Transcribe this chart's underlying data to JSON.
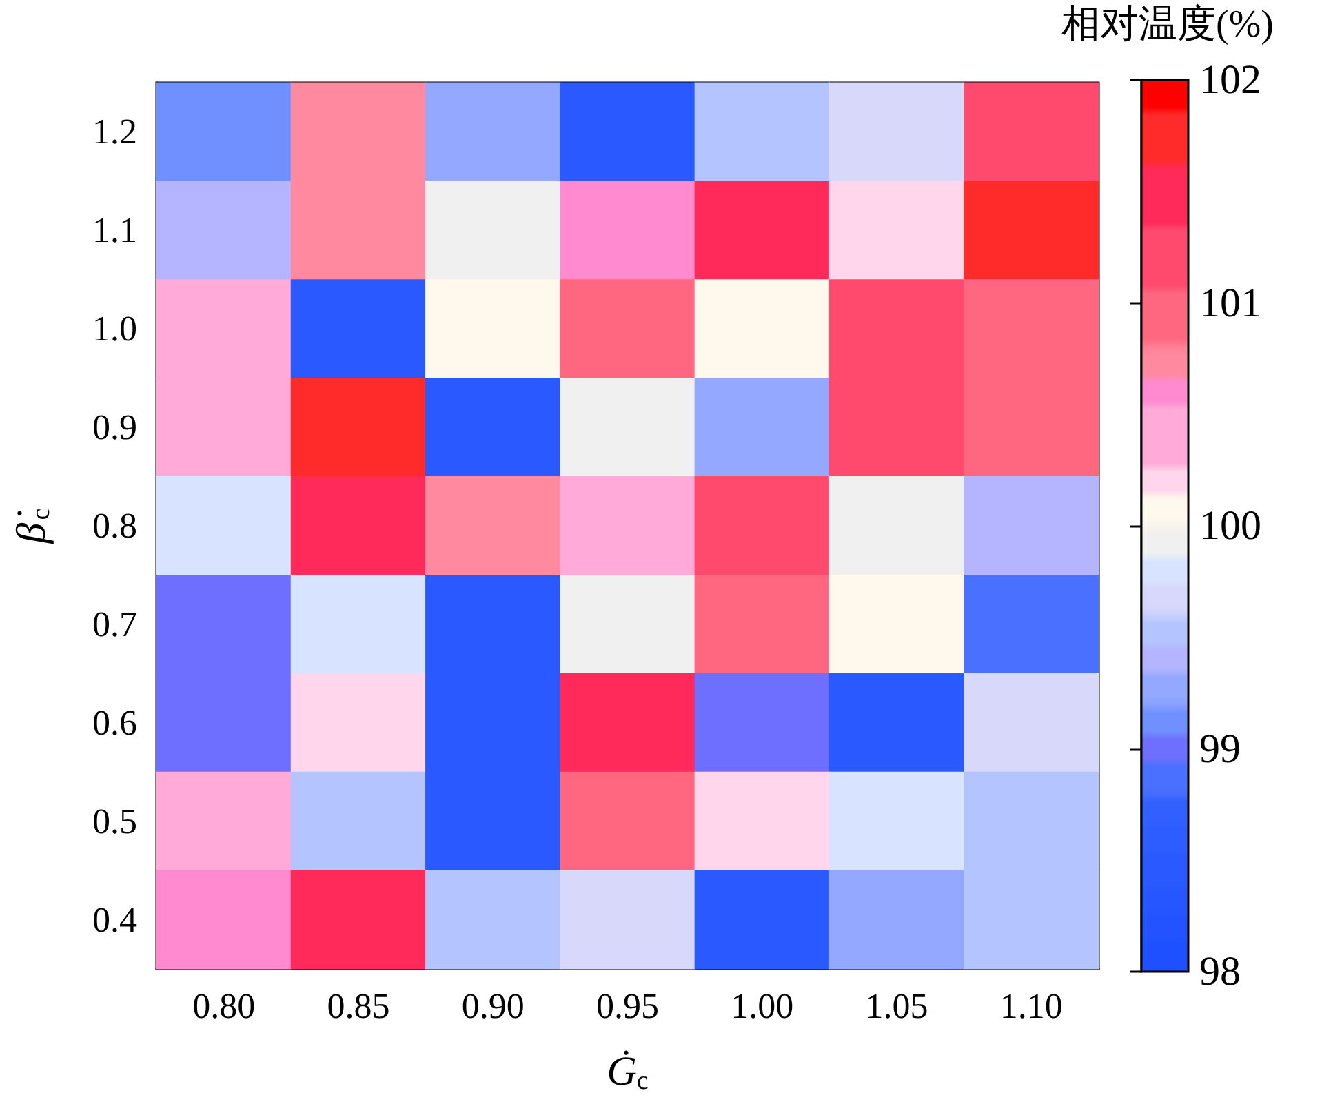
{
  "chart_data": {
    "type": "heatmap",
    "xlabel": "Ġ$_{c}$",
    "ylabel": "β̇$_{c}$",
    "clabel": "相对温度(%)",
    "categories": [
      "0.80",
      "0.85",
      "0.90",
      "0.95",
      "1.00",
      "1.05",
      "1.10"
    ],
    "y_categories": [
      "1.2",
      "1.1",
      "1.0",
      "0.9",
      "0.8",
      "0.7",
      "0.6",
      "0.5",
      "0.4"
    ],
    "cells": [
      [
        99.1,
        100.7,
        99.3,
        98.5,
        99.5,
        99.7,
        101.2
      ],
      [
        99.4,
        100.7,
        99.9,
        100.6,
        101.5,
        100.2,
        101.7
      ],
      [
        100.4,
        98.5,
        100.1,
        100.9,
        100.1,
        101.2,
        100.9
      ],
      [
        100.4,
        101.7,
        98.5,
        99.9,
        99.3,
        101.2,
        100.9
      ],
      [
        99.8,
        101.5,
        100.7,
        100.4,
        101.2,
        99.9,
        99.4
      ],
      [
        99.0,
        99.8,
        98.5,
        99.9,
        100.9,
        100.1,
        98.9
      ],
      [
        99.0,
        100.2,
        98.5,
        101.5,
        99.0,
        98.5,
        99.7
      ],
      [
        100.4,
        99.5,
        98.5,
        100.9,
        100.2,
        99.8,
        99.5
      ],
      [
        100.6,
        101.5,
        99.5,
        99.7,
        98.5,
        99.3,
        99.5
      ]
    ],
    "clim": [
      98,
      102
    ],
    "cticks": [
      98,
      99,
      100,
      101,
      102
    ]
  }
}
